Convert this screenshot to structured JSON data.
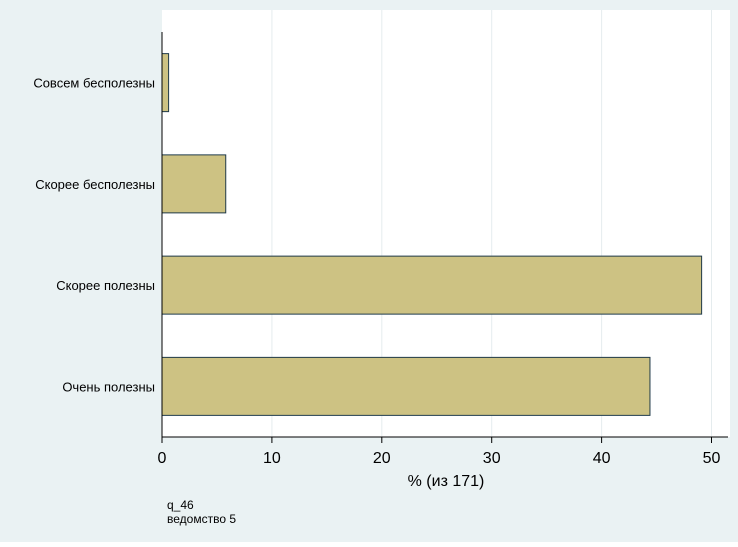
{
  "chart_data": {
    "type": "bar",
    "orientation": "horizontal",
    "categories": [
      "Совсем бесполезны",
      "Скорее бесполезны",
      "Скорее полезны",
      "Очень полезны"
    ],
    "values": [
      0.6,
      5.8,
      49.1,
      44.4
    ],
    "xlabel": "% (из 171)",
    "ylabel": "",
    "xlim": [
      0,
      51.5
    ],
    "xticks": [
      "0",
      "10",
      "20",
      "30",
      "40",
      "50"
    ],
    "xtick_values": [
      0,
      10,
      20,
      30,
      40,
      50
    ],
    "grid": true,
    "bar_color": "#cdc283",
    "bar_edge_color": "#1f3a4a",
    "background_color": "#eaf2f3",
    "plot_background_color": "#ffffff",
    "grid_color": "#e5ecee"
  },
  "notes": {
    "line1": "q_46",
    "line2": "ведомство 5"
  }
}
